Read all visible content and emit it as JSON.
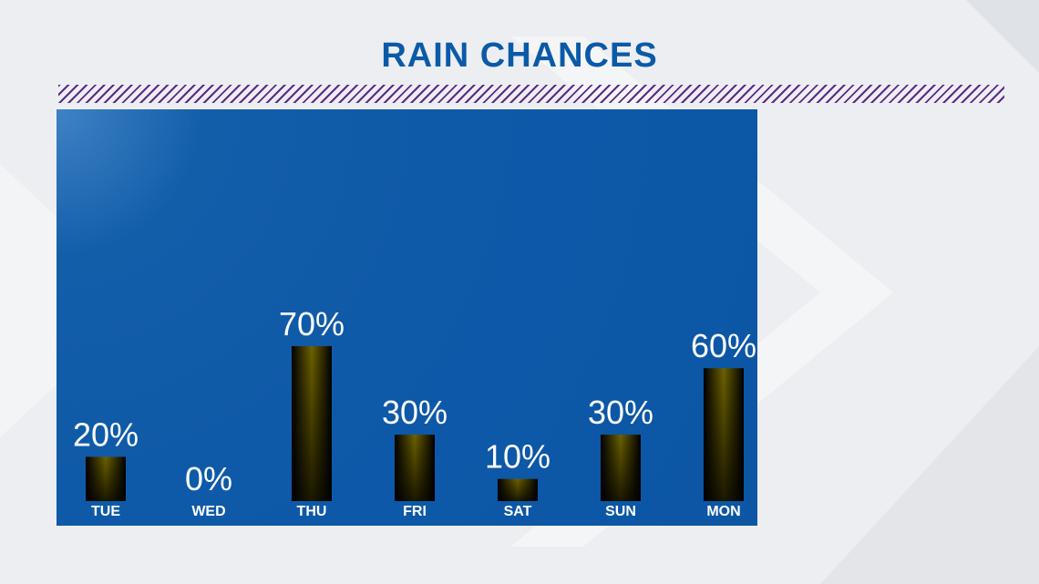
{
  "colors": {
    "background": "#eceef1",
    "title": "#0b5aa7",
    "stripe": "#5b2a86",
    "panel": "#0c58a6",
    "bar_light": "#7a6a00",
    "bar_dark": "#000000",
    "text": "#ffffff"
  },
  "header": {
    "title": "RAIN CHANCES"
  },
  "chart_data": {
    "type": "bar",
    "title": "RAIN CHANCES",
    "categories": [
      "TUE",
      "WED",
      "THU",
      "FRI",
      "SAT",
      "SUN",
      "MON"
    ],
    "values": [
      20,
      0,
      70,
      30,
      10,
      30,
      60
    ],
    "labels": [
      "20%",
      "0%",
      "70%",
      "30%",
      "10%",
      "30%",
      "60%"
    ],
    "unit": "%",
    "ylim": [
      0,
      100
    ],
    "grid": false,
    "legend": "none"
  }
}
